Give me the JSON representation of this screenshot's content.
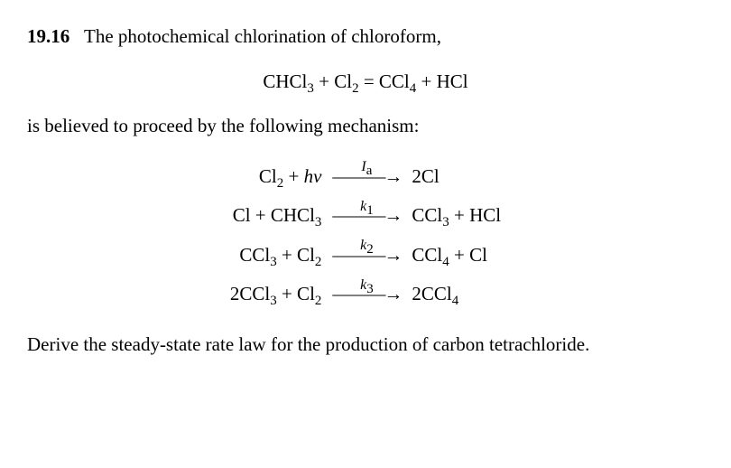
{
  "problem": {
    "number": "19.16",
    "intro_text": "The photochemical chlorination of chloroform,",
    "overall_equation": "CHCl₃ + Cl₂ = CCl₄ + HCl",
    "mid_text": "is believed to proceed by the following mechanism:",
    "mechanism_steps": [
      {
        "left": "Cl₂ + hν",
        "label_html": "<span class='italic'>I</span><sub>a</sub>",
        "right": "2Cl"
      },
      {
        "left": "Cl + CHCl₃",
        "label_html": "<span class='italic'>k</span><sub>1</sub>",
        "right": "CCl₃ + HCl"
      },
      {
        "left": "CCl₃ + Cl₂",
        "label_html": "<span class='italic'>k</span><sub>2</sub>",
        "right": "CCl₄ + Cl"
      },
      {
        "left": "2CCl₃ + Cl₂",
        "label_html": "<span class='italic'>k</span><sub>3</sub>",
        "right": "2CCl₄"
      }
    ],
    "conclusion_text": "Derive the steady-state rate law for the production of carbon tetrachloride."
  },
  "style": {
    "font_family": "Georgia serif",
    "font_size_pt": 16,
    "text_color": "#000000",
    "background_color": "#ffffff",
    "arrow_glyph": "⟶"
  }
}
